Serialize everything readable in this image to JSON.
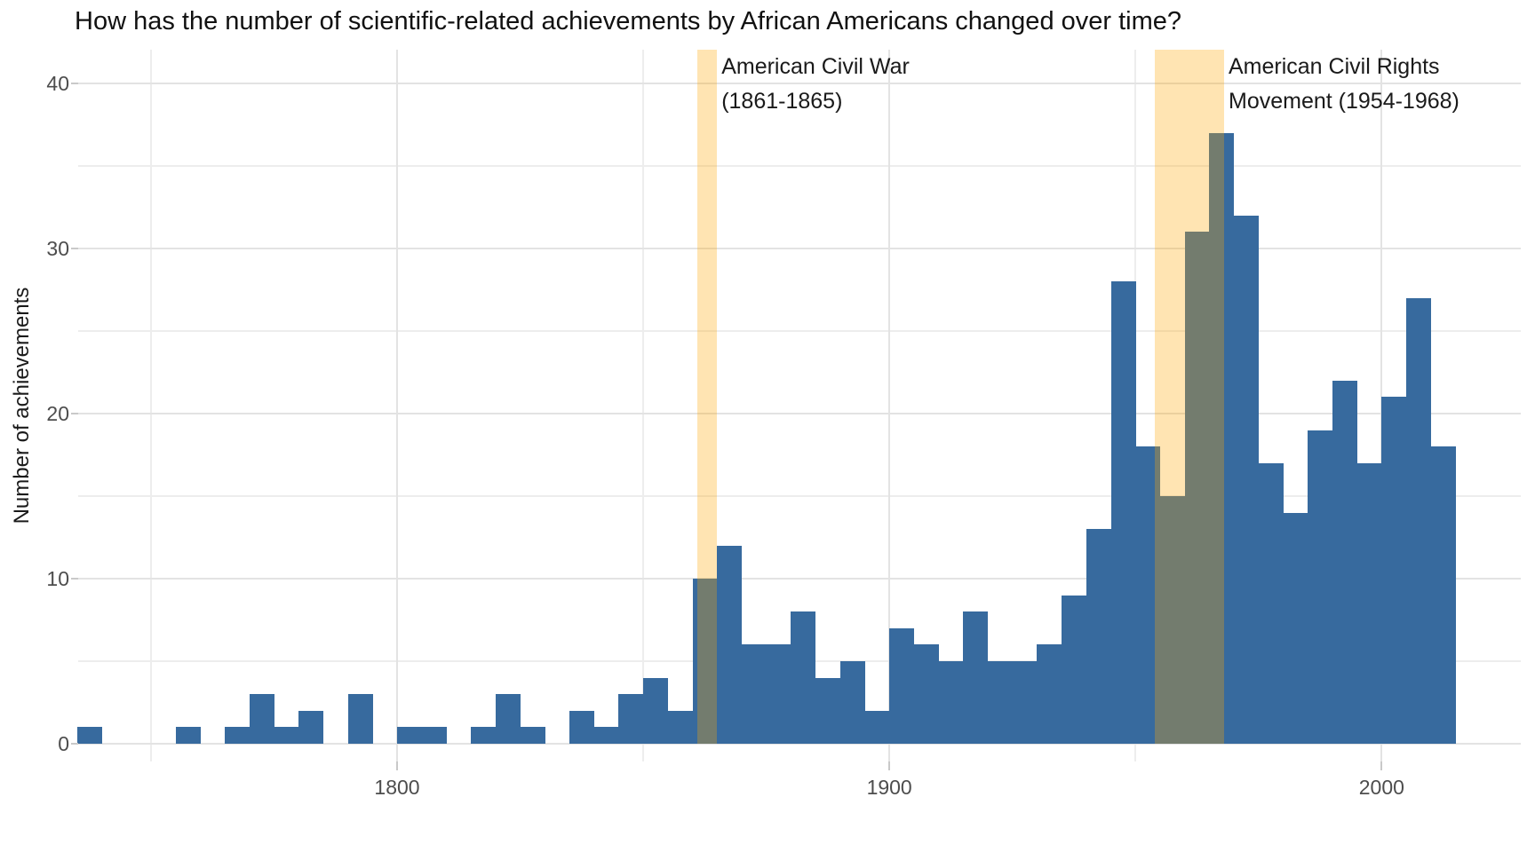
{
  "chart_data": {
    "type": "bar",
    "subtype": "histogram",
    "title": "How has the number of scientific-related achievements by African Americans changed over time?",
    "xlabel": "",
    "ylabel": "Number of achievements",
    "x_ticks": [
      1800,
      1900,
      2000
    ],
    "x_minor_ticks": [
      1750,
      1850,
      1950
    ],
    "y_ticks": [
      0,
      10,
      20,
      30,
      40
    ],
    "y_minor_ticks": [
      5,
      15,
      25,
      35
    ],
    "xlim": [
      1732,
      2028
    ],
    "ylim": [
      0,
      42
    ],
    "grid": true,
    "bin_width": 5,
    "bin_starts": [
      1735,
      1740,
      1745,
      1750,
      1755,
      1760,
      1765,
      1770,
      1775,
      1780,
      1785,
      1790,
      1795,
      1800,
      1805,
      1810,
      1815,
      1820,
      1825,
      1830,
      1835,
      1840,
      1845,
      1850,
      1855,
      1860,
      1865,
      1870,
      1875,
      1880,
      1885,
      1890,
      1895,
      1900,
      1905,
      1910,
      1915,
      1920,
      1925,
      1930,
      1935,
      1940,
      1945,
      1950,
      1955,
      1960,
      1965,
      1970,
      1975,
      1980,
      1985,
      1990,
      1995,
      2000,
      2005,
      2010
    ],
    "values": [
      1,
      0,
      0,
      0,
      1,
      0,
      1,
      3,
      1,
      2,
      0,
      3,
      0,
      1,
      1,
      0,
      1,
      3,
      1,
      0,
      2,
      1,
      3,
      4,
      2,
      10,
      12,
      6,
      6,
      8,
      4,
      5,
      2,
      7,
      6,
      5,
      8,
      5,
      5,
      6,
      9,
      13,
      28,
      18,
      15,
      31,
      37,
      32,
      17,
      14,
      19,
      22,
      17,
      21,
      27,
      18
    ],
    "annotations": [
      {
        "line1": "American Civil War",
        "line2": "(1861-1865)",
        "start_year": 1861,
        "end_year": 1865
      },
      {
        "line1": "American Civil Rights",
        "line2": "Movement (1954-1968)",
        "start_year": 1954,
        "end_year": 1968
      }
    ]
  },
  "colors": {
    "bar": "#376a9e",
    "highlight_band": "#ffa500",
    "band_opacity": 0.3,
    "grid_major": "#e3e3e3",
    "grid_minor": "#ededed",
    "tick_mark": "#c9c9c9",
    "tick_label": "#4d4d4d",
    "text": "#1a1a1a",
    "background": "#ffffff"
  }
}
